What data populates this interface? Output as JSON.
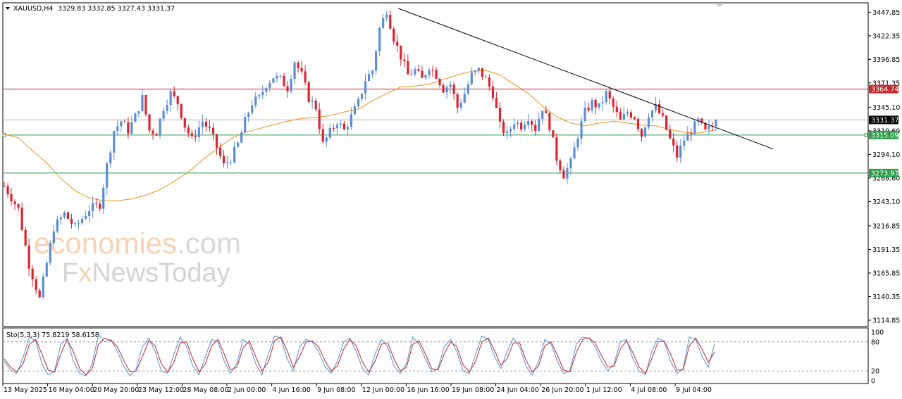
{
  "header": {
    "symbol": "XAUUSD,H4",
    "ohlc": "3329.83 3332.85 3327.43 3331.37"
  },
  "watermark": {
    "line1_a": "economies",
    "line1_b": ".com",
    "line2_a": "F",
    "line2_b": "x",
    "line2_c": "NewsToday"
  },
  "chart_data": [
    {
      "type": "candlestick",
      "title": "XAUUSD,H4",
      "ylim": [
        3108,
        3458
      ],
      "price_ticks": [
        "3447.85",
        "3422.35",
        "3396.85",
        "3371.35",
        "3345.10",
        "3319.60",
        "3294.10",
        "3268.60",
        "3243.10",
        "3216.85",
        "3191.35",
        "3165.85",
        "3140.35",
        "3114.85"
      ],
      "time_ticks": [
        "13 May 2025",
        "16 May 04:00",
        "20 May 20:00",
        "23 May 12:00",
        "28 May 08:00",
        "2 Jun 00:00",
        "4 Jun 16:00",
        "9 Jun 08:00",
        "12 Jun 00:00",
        "16 Jun 16:00",
        "19 Jun 08:00",
        "24 Jun 04:00",
        "26 Jun 20:00",
        "1 Jul 12:00",
        "4 Jul 08:00",
        "9 Jul 04:00"
      ],
      "horizontal_lines": [
        {
          "value": 3364.74,
          "label": "3364.74",
          "color": "#c0282d"
        },
        {
          "value": 3315.09,
          "label": "3315.09",
          "color": "#2e9e4a"
        },
        {
          "value": 3273.97,
          "label": "3273.97",
          "color": "#2e9e4a"
        }
      ],
      "current_price": {
        "value": 3331.37,
        "label": "3331.37"
      },
      "trendline": {
        "from": [
          "12 Jun 00:00",
          3452
        ],
        "to": [
          "projected",
          3300
        ],
        "color": "#000000"
      },
      "moving_average_color": "#f0901e",
      "bull_color": "#5b8ed6",
      "bear_color": "#e0232f",
      "price_path": [
        [
          0,
          3260
        ],
        [
          4,
          3235
        ],
        [
          7,
          3175
        ],
        [
          10,
          3138
        ],
        [
          14,
          3215
        ],
        [
          17,
          3230
        ],
        [
          20,
          3215
        ],
        [
          24,
          3235
        ],
        [
          27,
          3240
        ],
        [
          29,
          3282
        ],
        [
          31,
          3320
        ],
        [
          33,
          3330
        ],
        [
          35,
          3320
        ],
        [
          37,
          3335
        ],
        [
          39,
          3355
        ],
        [
          41,
          3320
        ],
        [
          43,
          3318
        ],
        [
          45,
          3345
        ],
        [
          47,
          3360
        ],
        [
          49,
          3350
        ],
        [
          51,
          3325
        ],
        [
          53,
          3310
        ],
        [
          56,
          3330
        ],
        [
          58,
          3320
        ],
        [
          60,
          3302
        ],
        [
          62,
          3282
        ],
        [
          64,
          3290
        ],
        [
          66,
          3305
        ],
        [
          68,
          3330
        ],
        [
          70,
          3350
        ],
        [
          72,
          3355
        ],
        [
          74,
          3370
        ],
        [
          76,
          3378
        ],
        [
          78,
          3375
        ],
        [
          80,
          3366
        ],
        [
          82,
          3395
        ],
        [
          84,
          3380
        ],
        [
          86,
          3355
        ],
        [
          88,
          3345
        ],
        [
          90,
          3305
        ],
        [
          92,
          3318
        ],
        [
          94,
          3330
        ],
        [
          96,
          3320
        ],
        [
          98,
          3335
        ],
        [
          100,
          3350
        ],
        [
          102,
          3375
        ],
        [
          104,
          3385
        ],
        [
          106,
          3430
        ],
        [
          108,
          3450
        ],
        [
          110,
          3420
        ],
        [
          112,
          3400
        ],
        [
          114,
          3380
        ],
        [
          116,
          3385
        ],
        [
          118,
          3375
        ],
        [
          120,
          3390
        ],
        [
          122,
          3380
        ],
        [
          124,
          3365
        ],
        [
          126,
          3370
        ],
        [
          128,
          3345
        ],
        [
          130,
          3360
        ],
        [
          132,
          3380
        ],
        [
          134,
          3385
        ],
        [
          136,
          3375
        ],
        [
          138,
          3360
        ],
        [
          140,
          3325
        ],
        [
          142,
          3315
        ],
        [
          144,
          3330
        ],
        [
          146,
          3325
        ],
        [
          148,
          3335
        ],
        [
          150,
          3322
        ],
        [
          152,
          3345
        ],
        [
          154,
          3325
        ],
        [
          156,
          3290
        ],
        [
          158,
          3272
        ],
        [
          160,
          3285
        ],
        [
          162,
          3315
        ],
        [
          164,
          3340
        ],
        [
          166,
          3350
        ],
        [
          168,
          3345
        ],
        [
          170,
          3360
        ],
        [
          172,
          3345
        ],
        [
          174,
          3330
        ],
        [
          176,
          3340
        ],
        [
          178,
          3335
        ],
        [
          180,
          3315
        ],
        [
          182,
          3338
        ],
        [
          184,
          3345
        ],
        [
          186,
          3332
        ],
        [
          188,
          3310
        ],
        [
          190,
          3292
        ],
        [
          192,
          3310
        ],
        [
          194,
          3320
        ],
        [
          196,
          3330
        ],
        [
          198,
          3318
        ],
        [
          200,
          3325
        ],
        [
          201,
          3331.37
        ]
      ],
      "ma_path": [
        [
          0,
          3316
        ],
        [
          4,
          3312
        ],
        [
          8,
          3298
        ],
        [
          12,
          3285
        ],
        [
          16,
          3268
        ],
        [
          20,
          3255
        ],
        [
          24,
          3247
        ],
        [
          28,
          3244
        ],
        [
          32,
          3244
        ],
        [
          36,
          3246
        ],
        [
          40,
          3250
        ],
        [
          44,
          3256
        ],
        [
          48,
          3265
        ],
        [
          52,
          3275
        ],
        [
          56,
          3288
        ],
        [
          60,
          3300
        ],
        [
          64,
          3311
        ],
        [
          68,
          3318
        ],
        [
          72,
          3322
        ],
        [
          76,
          3326
        ],
        [
          80,
          3330
        ],
        [
          84,
          3333
        ],
        [
          88,
          3334
        ],
        [
          92,
          3336
        ],
        [
          96,
          3340
        ],
        [
          100,
          3343
        ],
        [
          104,
          3352
        ],
        [
          108,
          3360
        ],
        [
          112,
          3367
        ],
        [
          116,
          3368
        ],
        [
          120,
          3370
        ],
        [
          124,
          3375
        ],
        [
          128,
          3380
        ],
        [
          132,
          3384
        ],
        [
          136,
          3385
        ],
        [
          140,
          3380
        ],
        [
          144,
          3370
        ],
        [
          148,
          3360
        ],
        [
          152,
          3346
        ],
        [
          156,
          3335
        ],
        [
          160,
          3328
        ],
        [
          164,
          3325
        ],
        [
          168,
          3328
        ],
        [
          172,
          3330
        ],
        [
          176,
          3328
        ],
        [
          180,
          3326
        ],
        [
          184,
          3325
        ],
        [
          188,
          3321
        ],
        [
          192,
          3318
        ],
        [
          196,
          3317
        ],
        [
          200,
          3320
        ],
        [
          201,
          3321
        ]
      ]
    },
    {
      "type": "line",
      "title": "Sto(5,3,3) 75.8219 58.6158",
      "ylim": [
        0,
        100
      ],
      "y_ticks": [
        "100",
        "80",
        "20",
        "0"
      ],
      "levels": [
        80,
        20
      ],
      "series": [
        {
          "color": "#5b8ed6",
          "values": [
            40,
            22,
            15,
            48,
            90,
            82,
            35,
            12,
            20,
            75,
            88,
            40,
            15,
            10,
            35,
            95,
            80,
            85,
            60,
            30,
            10,
            25,
            70,
            88,
            60,
            20,
            15,
            55,
            90,
            70,
            30,
            12,
            50,
            85,
            80,
            40,
            15,
            35,
            85,
            75,
            35,
            12,
            55,
            92,
            88,
            45,
            20,
            70,
            85,
            80,
            60,
            30,
            15,
            40,
            80,
            88,
            60,
            25,
            12,
            55,
            85,
            70,
            30,
            15,
            35,
            90,
            75,
            45,
            18,
            25,
            70,
            85,
            60,
            20,
            15,
            55,
            92,
            85,
            50,
            25,
            60,
            88,
            70,
            30,
            12,
            40,
            85,
            75,
            40,
            15,
            20,
            75,
            90,
            88,
            70,
            40,
            20,
            35,
            80,
            85,
            45,
            20,
            12,
            60,
            88,
            80,
            40,
            15,
            25,
            90,
            85,
            50,
            28,
            76
          ]
        },
        {
          "color": "#c0282d",
          "values": [
            45,
            28,
            18,
            35,
            75,
            85,
            55,
            22,
            18,
            55,
            85,
            60,
            25,
            12,
            25,
            75,
            88,
            82,
            70,
            42,
            18,
            20,
            50,
            82,
            72,
            35,
            18,
            38,
            78,
            80,
            45,
            18,
            35,
            72,
            85,
            55,
            22,
            28,
            68,
            82,
            50,
            20,
            38,
            82,
            90,
            62,
            28,
            50,
            80,
            82,
            70,
            42,
            20,
            30,
            65,
            85,
            72,
            38,
            18,
            40,
            75,
            78,
            45,
            20,
            28,
            75,
            82,
            55,
            25,
            22,
            55,
            80,
            70,
            32,
            18,
            40,
            80,
            88,
            62,
            32,
            45,
            78,
            78,
            42,
            18,
            30,
            72,
            80,
            52,
            22,
            18,
            58,
            85,
            88,
            78,
            52,
            28,
            30,
            65,
            82,
            58,
            28,
            15,
            45,
            80,
            82,
            55,
            22,
            22,
            72,
            88,
            65,
            38,
            59
          ]
        }
      ]
    }
  ]
}
